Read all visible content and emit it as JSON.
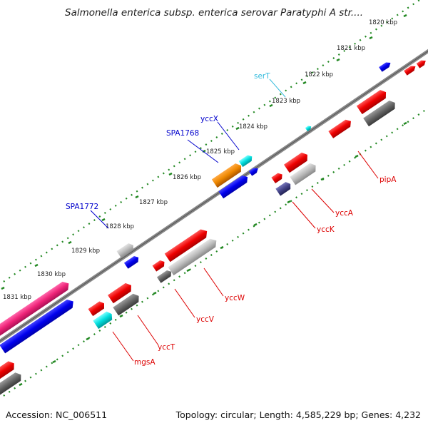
{
  "title": "Salmonella enterica subsp. enterica serovar Paratyphi A str....",
  "footer": {
    "accession": "Accession: NC_006511",
    "summary": "Topology: circular; Length: 4,585,229 bp; Genes: 4,232"
  },
  "ticks": [
    {
      "label": "1820 kbp"
    },
    {
      "label": "1821 kbp"
    },
    {
      "label": "1822 kbp"
    },
    {
      "label": "1823 kbp"
    },
    {
      "label": "1824 kbp"
    },
    {
      "label": "1825 kbp"
    },
    {
      "label": "1826 kbp"
    },
    {
      "label": "1827 kbp"
    },
    {
      "label": "1828 kbp"
    },
    {
      "label": "1829 kbp"
    },
    {
      "label": "1830 kbp"
    },
    {
      "label": "1831 kbp"
    }
  ],
  "gene_labels": [
    {
      "name": "serT",
      "color": "#33bbdd"
    },
    {
      "name": "yccX",
      "color": "#0000cc"
    },
    {
      "name": "SPA1768",
      "color": "#0000cc"
    },
    {
      "name": "SPA1772",
      "color": "#0000cc"
    },
    {
      "name": "pipA",
      "color": "#dd0000"
    },
    {
      "name": "yccA",
      "color": "#dd0000"
    },
    {
      "name": "yccK",
      "color": "#dd0000"
    },
    {
      "name": "yccW",
      "color": "#dd0000"
    },
    {
      "name": "yccV",
      "color": "#dd0000"
    },
    {
      "name": "yccT",
      "color": "#dd0000"
    },
    {
      "name": "mgsA",
      "color": "#dd0000"
    }
  ],
  "colors": {
    "backbone": "#888888",
    "tick_dots": "#228822",
    "red_feature": "#ee0000",
    "blue_feature": "#0000ee",
    "cyan_feature": "#00dddd",
    "orange_feature": "#ee8800",
    "pink_feature": "#ee2277",
    "gray_feature": "#bbbbbb",
    "dark_gray_feature": "#666666",
    "purple_feature": "#444488"
  }
}
